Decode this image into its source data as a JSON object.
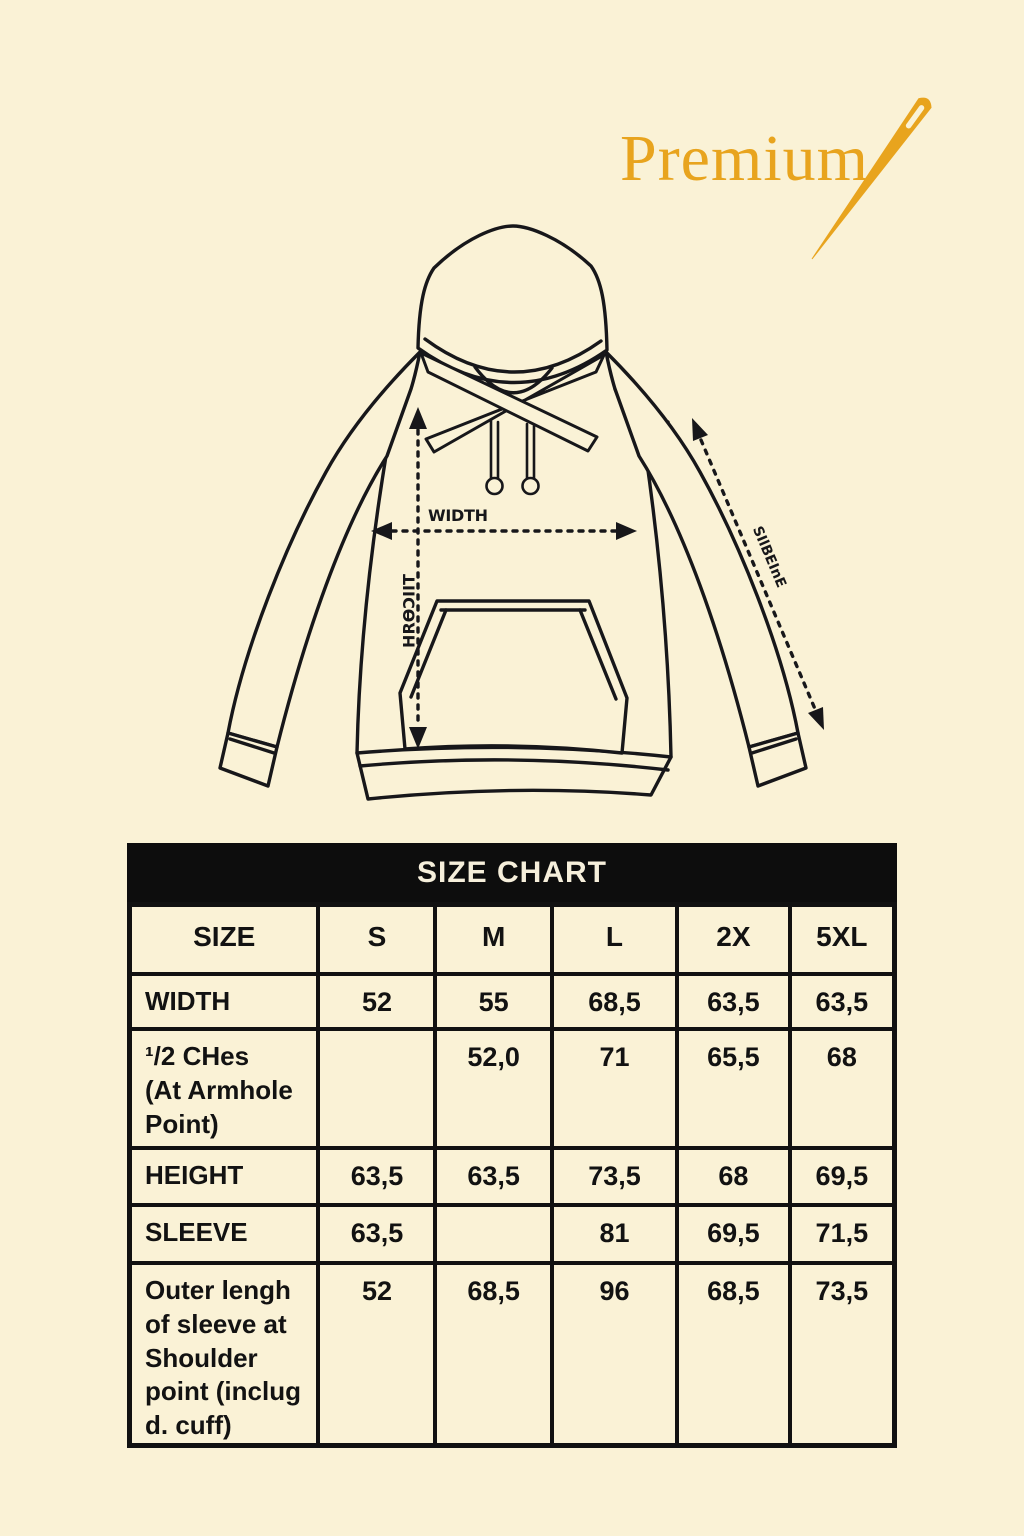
{
  "brand": {
    "name": "Premium"
  },
  "diagram": {
    "width_label": "WIDTH",
    "height_label": "HRƟƆIIT",
    "sleeve_label": "SIlBEInE"
  },
  "size_chart": {
    "title": "SIZE CHART",
    "columns": [
      "SIZE",
      "S",
      "M",
      "L",
      "2X",
      "5XL"
    ],
    "rows": [
      {
        "label": "WIDTH",
        "values": [
          "52",
          "55",
          "68,5",
          "63,5",
          "63,5"
        ]
      },
      {
        "label": "¹/2 CHes\n(At Armhole\nPoint)",
        "values": [
          "",
          "52,0",
          "71",
          "65,5",
          "68"
        ]
      },
      {
        "label": "HEIGHT",
        "values": [
          "63,5",
          "63,5",
          "73,5",
          "68",
          "69,5"
        ]
      },
      {
        "label": "SLEEVE",
        "values": [
          "63,5",
          "",
          "81",
          "69,5",
          "71,5"
        ]
      },
      {
        "label": "Outer lengh\nof sleeve at\nShoulder\npoint (inclug\nd. cuff)",
        "values": [
          "52",
          "68,5",
          "96",
          "68,5",
          "73,5"
        ]
      }
    ]
  },
  "colors": {
    "background": "#FAF2D6",
    "accent_gold": "#E8A41E",
    "line": "#17171A",
    "table_header_bg": "#0D0D0D",
    "table_header_text": "#F6EFDB"
  }
}
